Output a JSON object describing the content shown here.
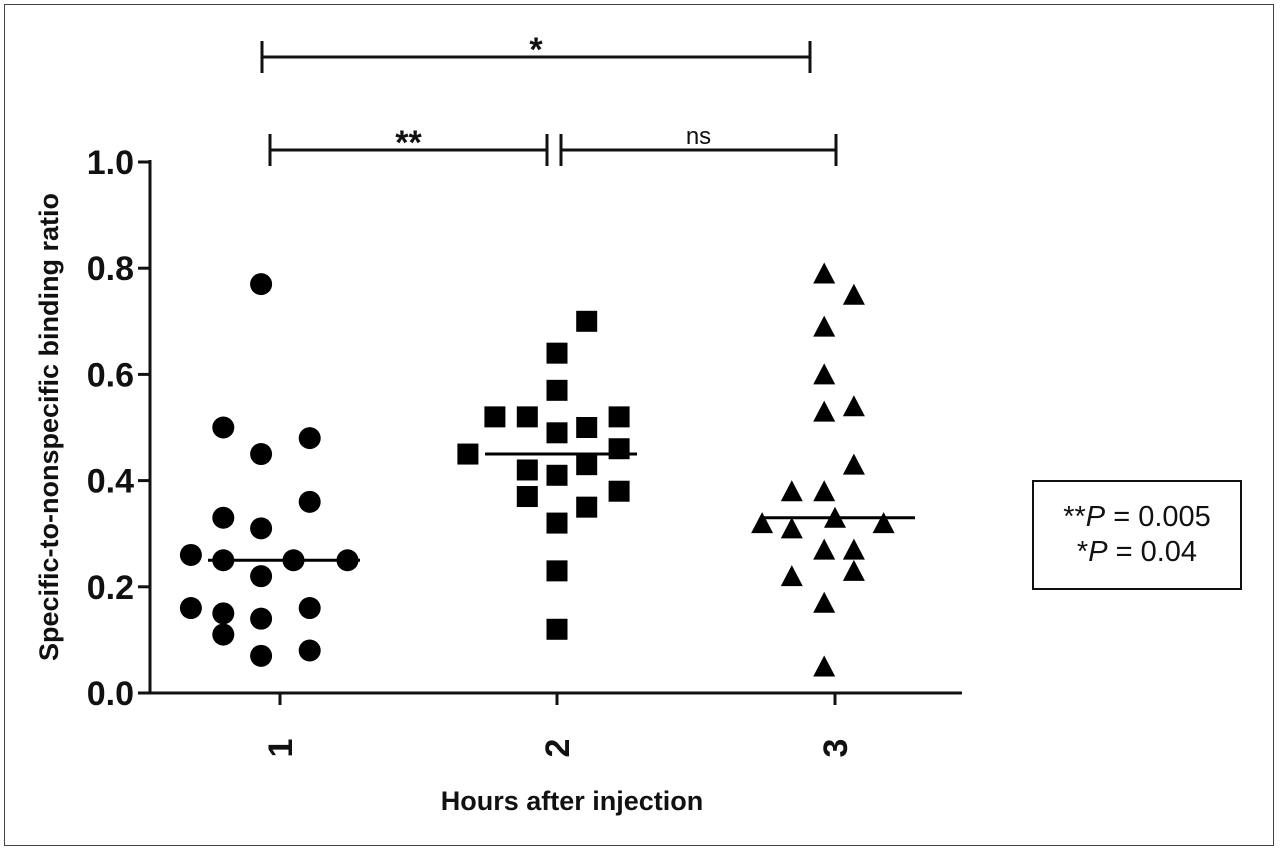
{
  "chart_data": {
    "type": "scatter",
    "xlabel": "Hours after injection",
    "ylabel": "Specific-to-nonspecific binding ratio",
    "categories": [
      "1",
      "2",
      "3"
    ],
    "ylim": [
      0.0,
      1.0
    ],
    "yticks": [
      "0.0",
      "0.2",
      "0.4",
      "0.6",
      "0.8",
      "1.0"
    ],
    "grid": false,
    "series": [
      {
        "category": "1",
        "marker": "circle",
        "median": 0.25,
        "points": [
          {
            "offset": -0.07,
            "y": 0.77
          },
          {
            "offset": -0.21,
            "y": 0.5
          },
          {
            "offset": 0.11,
            "y": 0.48
          },
          {
            "offset": -0.07,
            "y": 0.45
          },
          {
            "offset": 0.11,
            "y": 0.36
          },
          {
            "offset": -0.21,
            "y": 0.33
          },
          {
            "offset": -0.07,
            "y": 0.31
          },
          {
            "offset": -0.33,
            "y": 0.26
          },
          {
            "offset": -0.21,
            "y": 0.25
          },
          {
            "offset": 0.05,
            "y": 0.25
          },
          {
            "offset": 0.25,
            "y": 0.25
          },
          {
            "offset": -0.07,
            "y": 0.22
          },
          {
            "offset": -0.33,
            "y": 0.16
          },
          {
            "offset": -0.21,
            "y": 0.15
          },
          {
            "offset": 0.11,
            "y": 0.16
          },
          {
            "offset": -0.07,
            "y": 0.14
          },
          {
            "offset": -0.21,
            "y": 0.11
          },
          {
            "offset": -0.07,
            "y": 0.07
          },
          {
            "offset": 0.11,
            "y": 0.08
          }
        ]
      },
      {
        "category": "2",
        "marker": "square",
        "median": 0.45,
        "points": [
          {
            "offset": 0.11,
            "y": 0.7
          },
          {
            "offset": 0.0,
            "y": 0.64
          },
          {
            "offset": 0.0,
            "y": 0.57
          },
          {
            "offset": -0.23,
            "y": 0.52
          },
          {
            "offset": -0.11,
            "y": 0.52
          },
          {
            "offset": 0.23,
            "y": 0.52
          },
          {
            "offset": 0.0,
            "y": 0.49
          },
          {
            "offset": 0.11,
            "y": 0.5
          },
          {
            "offset": -0.33,
            "y": 0.45
          },
          {
            "offset": 0.23,
            "y": 0.46
          },
          {
            "offset": -0.11,
            "y": 0.42
          },
          {
            "offset": 0.11,
            "y": 0.43
          },
          {
            "offset": 0.0,
            "y": 0.41
          },
          {
            "offset": -0.11,
            "y": 0.37
          },
          {
            "offset": 0.23,
            "y": 0.38
          },
          {
            "offset": 0.11,
            "y": 0.35
          },
          {
            "offset": 0.0,
            "y": 0.32
          },
          {
            "offset": 0.0,
            "y": 0.23
          },
          {
            "offset": 0.0,
            "y": 0.12
          }
        ]
      },
      {
        "category": "3",
        "marker": "triangle",
        "median": 0.33,
        "points": [
          {
            "offset": -0.04,
            "y": 0.79
          },
          {
            "offset": 0.07,
            "y": 0.75
          },
          {
            "offset": -0.04,
            "y": 0.69
          },
          {
            "offset": -0.04,
            "y": 0.6
          },
          {
            "offset": -0.04,
            "y": 0.53
          },
          {
            "offset": 0.07,
            "y": 0.54
          },
          {
            "offset": 0.07,
            "y": 0.43
          },
          {
            "offset": -0.16,
            "y": 0.38
          },
          {
            "offset": -0.04,
            "y": 0.38
          },
          {
            "offset": -0.27,
            "y": 0.32
          },
          {
            "offset": -0.16,
            "y": 0.31
          },
          {
            "offset": 0.0,
            "y": 0.33
          },
          {
            "offset": 0.18,
            "y": 0.32
          },
          {
            "offset": -0.04,
            "y": 0.27
          },
          {
            "offset": 0.07,
            "y": 0.27
          },
          {
            "offset": -0.16,
            "y": 0.22
          },
          {
            "offset": 0.07,
            "y": 0.23
          },
          {
            "offset": -0.04,
            "y": 0.17
          },
          {
            "offset": -0.04,
            "y": 0.05
          }
        ]
      }
    ],
    "significance": [
      {
        "from": "1",
        "to": "2",
        "label": "**"
      },
      {
        "from": "2",
        "to": "3",
        "label": "ns"
      },
      {
        "from": "1",
        "to": "3",
        "label": "*"
      }
    ],
    "legend_box": {
      "line1_prefix": "**",
      "line1_italic": "P",
      "line1_suffix": " = 0.005",
      "line2_prefix": "*",
      "line2_italic": "P",
      "line2_suffix": " = 0.04"
    }
  }
}
